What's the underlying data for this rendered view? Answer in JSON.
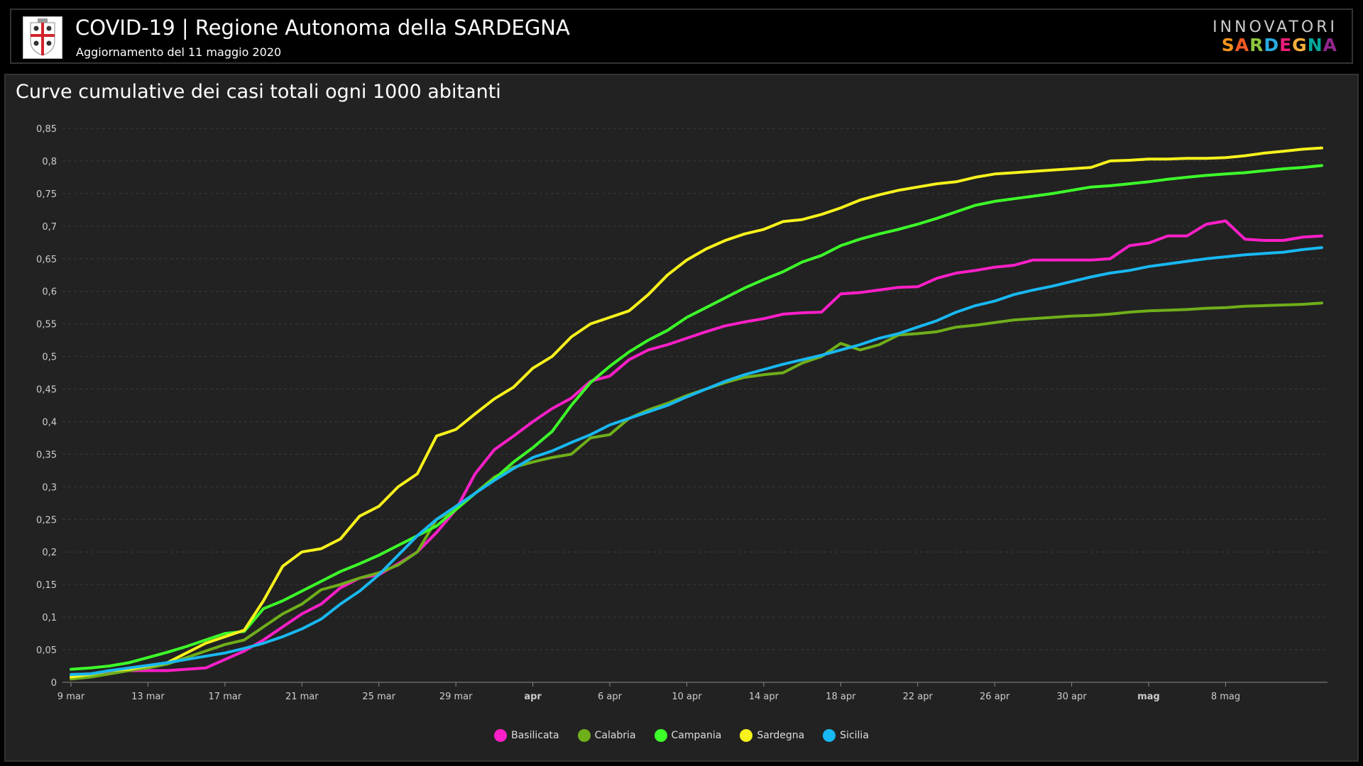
{
  "header": {
    "title": "COVID-19 | Regione Autonoma della SARDEGNA",
    "subtitle": "Aggiornamento del 11 maggio 2020",
    "brand_top": "INNOVATORI",
    "brand_letters": [
      "S",
      "A",
      "R",
      "D",
      "E",
      "G",
      "N",
      "A"
    ],
    "brand_colors": [
      "#f7941d",
      "#f15a24",
      "#8dc63f",
      "#29abe2",
      "#ed1e79",
      "#fbb03b",
      "#00a99d",
      "#92278f"
    ]
  },
  "chart_data": {
    "type": "line",
    "title": "Curve cumulative dei casi totali ogni 1000 abitanti",
    "xlabel": "",
    "ylabel": "",
    "start_date": "2020-03-09",
    "x_tick_labels": [
      "9 mar",
      "13 mar",
      "17 mar",
      "21 mar",
      "25 mar",
      "29 mar",
      "apr",
      "6 apr",
      "10 apr",
      "14 apr",
      "18 apr",
      "22 apr",
      "26 apr",
      "30 apr",
      "mag",
      "8 mag"
    ],
    "x_tick_bold": [
      "apr",
      "mag"
    ],
    "y_tick_labels": [
      "0",
      "0,05",
      "0,1",
      "0,15",
      "0,2",
      "0,25",
      "0,3",
      "0,35",
      "0,4",
      "0,45",
      "0,5",
      "0,55",
      "0,6",
      "0,65",
      "0,7",
      "0,75",
      "0,8",
      "0,85"
    ],
    "ylim": [
      0,
      0.85
    ],
    "grid": true,
    "legend_position": "bottom-center",
    "series": [
      {
        "name": "Basilicata",
        "color": "#ff1fc8",
        "values": [
          0.012,
          0.013,
          0.016,
          0.018,
          0.018,
          0.018,
          0.02,
          0.022,
          0.035,
          0.048,
          0.065,
          0.085,
          0.105,
          0.12,
          0.145,
          0.16,
          0.165,
          0.182,
          0.2,
          0.23,
          0.265,
          0.32,
          0.357,
          0.378,
          0.4,
          0.42,
          0.436,
          0.462,
          0.47,
          0.495,
          0.51,
          0.518,
          0.528,
          0.538,
          0.547,
          0.553,
          0.558,
          0.565,
          0.567,
          0.568,
          0.596,
          0.598,
          0.602,
          0.606,
          0.607,
          0.62,
          0.628,
          0.632,
          0.637,
          0.64,
          0.648,
          0.648,
          0.648,
          0.648,
          0.65,
          0.67,
          0.674,
          0.685,
          0.685,
          0.703,
          0.708,
          0.68,
          0.678,
          0.678,
          0.683,
          0.685
        ]
      },
      {
        "name": "Calabria",
        "color": "#6faf1a",
        "values": [
          0.005,
          0.008,
          0.013,
          0.018,
          0.022,
          0.028,
          0.038,
          0.048,
          0.058,
          0.065,
          0.085,
          0.105,
          0.12,
          0.142,
          0.15,
          0.16,
          0.168,
          0.18,
          0.2,
          0.25,
          0.265,
          0.29,
          0.315,
          0.33,
          0.338,
          0.345,
          0.35,
          0.375,
          0.38,
          0.405,
          0.418,
          0.428,
          0.44,
          0.45,
          0.46,
          0.468,
          0.472,
          0.475,
          0.49,
          0.5,
          0.52,
          0.51,
          0.518,
          0.533,
          0.535,
          0.538,
          0.545,
          0.548,
          0.552,
          0.556,
          0.558,
          0.56,
          0.562,
          0.563,
          0.565,
          0.568,
          0.57,
          0.571,
          0.572,
          0.574,
          0.575,
          0.577,
          0.578,
          0.579,
          0.58,
          0.582
        ]
      },
      {
        "name": "Campania",
        "color": "#3dff2a",
        "values": [
          0.02,
          0.022,
          0.025,
          0.03,
          0.038,
          0.046,
          0.055,
          0.065,
          0.075,
          0.078,
          0.113,
          0.125,
          0.14,
          0.155,
          0.17,
          0.182,
          0.195,
          0.21,
          0.225,
          0.24,
          0.265,
          0.29,
          0.312,
          0.338,
          0.36,
          0.385,
          0.425,
          0.46,
          0.485,
          0.507,
          0.525,
          0.54,
          0.56,
          0.575,
          0.59,
          0.605,
          0.618,
          0.63,
          0.645,
          0.655,
          0.67,
          0.68,
          0.688,
          0.695,
          0.703,
          0.712,
          0.722,
          0.732,
          0.738,
          0.742,
          0.746,
          0.75,
          0.755,
          0.76,
          0.762,
          0.765,
          0.768,
          0.772,
          0.775,
          0.778,
          0.78,
          0.782,
          0.785,
          0.788,
          0.79,
          0.793
        ]
      },
      {
        "name": "Sardegna",
        "color": "#f7f21c",
        "values": [
          0.008,
          0.012,
          0.018,
          0.02,
          0.025,
          0.03,
          0.045,
          0.06,
          0.07,
          0.08,
          0.125,
          0.178,
          0.2,
          0.205,
          0.22,
          0.255,
          0.27,
          0.3,
          0.32,
          0.378,
          0.388,
          0.412,
          0.435,
          0.453,
          0.482,
          0.5,
          0.53,
          0.55,
          0.56,
          0.57,
          0.595,
          0.625,
          0.648,
          0.665,
          0.678,
          0.688,
          0.695,
          0.707,
          0.71,
          0.718,
          0.728,
          0.74,
          0.748,
          0.755,
          0.76,
          0.765,
          0.768,
          0.775,
          0.78,
          0.782,
          0.784,
          0.786,
          0.788,
          0.79,
          0.8,
          0.801,
          0.803,
          0.803,
          0.804,
          0.804,
          0.805,
          0.808,
          0.812,
          0.815,
          0.818,
          0.82
        ]
      },
      {
        "name": "Sicilia",
        "color": "#18b8f2",
        "values": [
          0.012,
          0.013,
          0.018,
          0.022,
          0.026,
          0.03,
          0.035,
          0.04,
          0.045,
          0.052,
          0.06,
          0.07,
          0.082,
          0.097,
          0.12,
          0.14,
          0.165,
          0.195,
          0.225,
          0.25,
          0.27,
          0.29,
          0.31,
          0.328,
          0.345,
          0.355,
          0.368,
          0.38,
          0.395,
          0.405,
          0.415,
          0.425,
          0.438,
          0.45,
          0.462,
          0.472,
          0.48,
          0.488,
          0.495,
          0.502,
          0.51,
          0.518,
          0.528,
          0.535,
          0.545,
          0.555,
          0.568,
          0.578,
          0.585,
          0.595,
          0.602,
          0.608,
          0.615,
          0.622,
          0.628,
          0.632,
          0.638,
          0.642,
          0.646,
          0.65,
          0.653,
          0.656,
          0.658,
          0.66,
          0.664,
          0.667
        ]
      }
    ]
  }
}
